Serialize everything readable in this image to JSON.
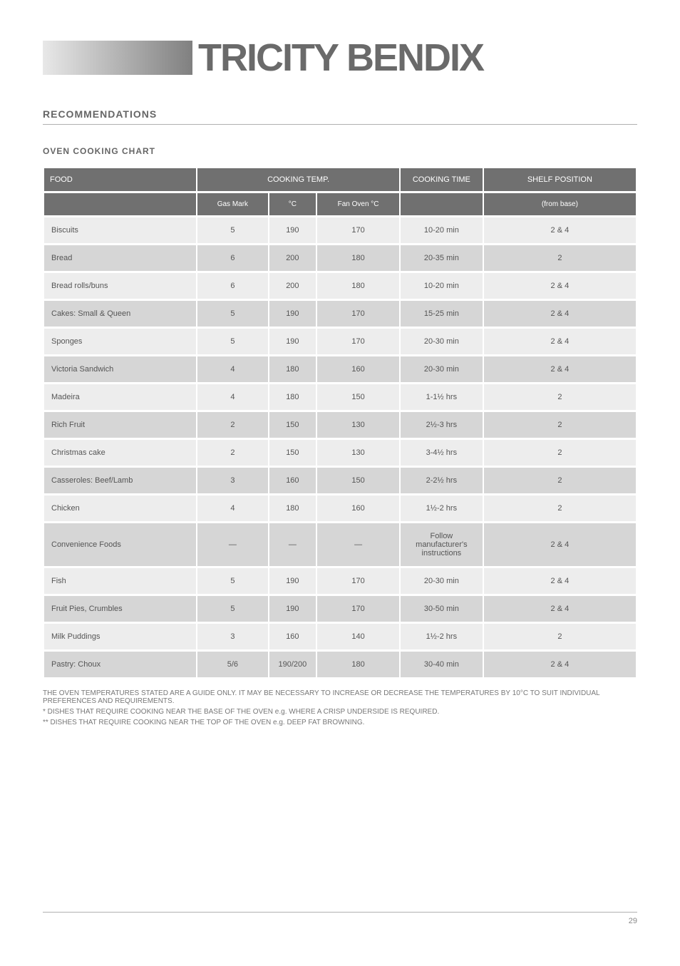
{
  "brand": "TRICITY BENDIX",
  "section_title": "RECOMMENDATIONS",
  "section_subtitle": "OVEN COOKING CHART",
  "colors": {
    "header_bg": "#707070",
    "row_light": "#ededed",
    "row_dark": "#d6d6d6",
    "brand_grey": "#6a6a6a"
  },
  "table": {
    "group_headers": [
      "FOOD",
      "COOKING TEMP.",
      "COOKING TIME",
      "SHELF POSITION"
    ],
    "sub_headers": [
      "",
      "Gas Mark",
      "°C",
      "Fan Oven °C",
      "",
      "(from base)"
    ],
    "rows": [
      {
        "food": "Biscuits",
        "mark": "5",
        "temp": "190",
        "fan": "170",
        "time": "10-20 min",
        "pos": "2 & 4"
      },
      {
        "food": "Bread",
        "mark": "6",
        "temp": "200",
        "fan": "180",
        "time": "20-35 min",
        "pos": "2"
      },
      {
        "food": "Bread rolls/buns",
        "mark": "6",
        "temp": "200",
        "fan": "180",
        "time": "10-20 min",
        "pos": "2 & 4"
      },
      {
        "food": "Cakes: Small & Queen",
        "mark": "5",
        "temp": "190",
        "fan": "170",
        "time": "15-25 min",
        "pos": "2 & 4"
      },
      {
        "food": "Sponges",
        "mark": "5",
        "temp": "190",
        "fan": "170",
        "time": "20-30 min",
        "pos": "2 & 4"
      },
      {
        "food": "Victoria Sandwich",
        "mark": "4",
        "temp": "180",
        "fan": "160",
        "time": "20-30 min",
        "pos": "2 & 4"
      },
      {
        "food": "Madeira",
        "mark": "4",
        "temp": "180",
        "fan": "150",
        "time": "1-1½ hrs",
        "pos": "2"
      },
      {
        "food": "Rich Fruit",
        "mark": "2",
        "temp": "150",
        "fan": "130",
        "time": "2½-3 hrs",
        "pos": "2"
      },
      {
        "food": "Christmas cake",
        "mark": "2",
        "temp": "150",
        "fan": "130",
        "time": "3-4½ hrs",
        "pos": "2"
      },
      {
        "food": "Casseroles: Beef/Lamb",
        "mark": "3",
        "temp": "160",
        "fan": "150",
        "time": "2-2½ hrs",
        "pos": "2"
      },
      {
        "food": "Chicken",
        "mark": "4",
        "temp": "180",
        "fan": "160",
        "time": "1½-2 hrs",
        "pos": "2"
      },
      {
        "food": "Convenience Foods",
        "mark": "—",
        "temp": "—",
        "fan": "—",
        "time": "Follow manufacturer's instructions",
        "pos": "2 & 4"
      },
      {
        "food": "Fish",
        "mark": "5",
        "temp": "190",
        "fan": "170",
        "time": "20-30 min",
        "pos": "2 & 4"
      },
      {
        "food": "Fruit Pies, Crumbles",
        "mark": "5",
        "temp": "190",
        "fan": "170",
        "time": "30-50 min",
        "pos": "2 & 4"
      },
      {
        "food": "Milk Puddings",
        "mark": "3",
        "temp": "160",
        "fan": "140",
        "time": "1½-2 hrs",
        "pos": "2"
      },
      {
        "food": "Pastry: Choux",
        "mark": "5/6",
        "temp": "190/200",
        "fan": "180",
        "time": "30-40 min",
        "pos": "2 & 4"
      }
    ]
  },
  "footnotes": [
    "THE OVEN TEMPERATURES STATED ARE A GUIDE ONLY. IT MAY BE NECESSARY TO INCREASE OR DECREASE THE TEMPERATURES BY 10°C TO SUIT INDIVIDUAL PREFERENCES AND REQUIREMENTS.",
    "* DISHES THAT REQUIRE COOKING NEAR THE BASE OF THE OVEN e.g. WHERE A CRISP UNDERSIDE IS REQUIRED.",
    "** DISHES THAT REQUIRE COOKING NEAR THE TOP OF THE OVEN e.g. DEEP FAT BROWNING."
  ],
  "page_number": "29"
}
